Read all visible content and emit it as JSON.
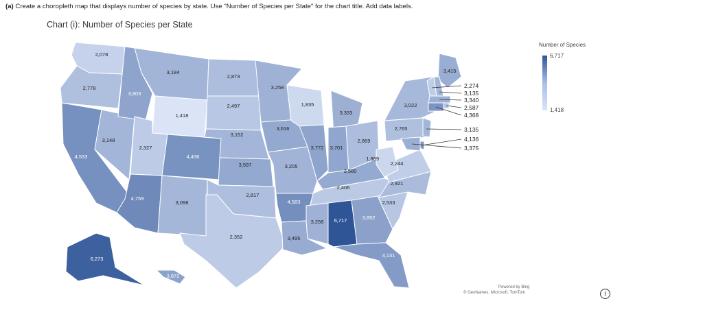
{
  "instruction": {
    "label": "(a)",
    "text": "Create a choropleth map that displays number of species by state. Use \"Number of Species per State\" for the chart title. Add data labels."
  },
  "chart_data": {
    "type": "choropleth",
    "title": "Chart (i): Number of Species per State",
    "legend": {
      "title": "Number of Species",
      "max": "6,717",
      "min": "1,418",
      "placement": "top-right"
    },
    "color_scale": {
      "low": "#dbe4f7",
      "high": "#2f5597"
    },
    "regions": [
      {
        "state": "WA",
        "label": "2,078",
        "value": 2078
      },
      {
        "state": "OR",
        "label": "2,778",
        "value": 2778
      },
      {
        "state": "CA",
        "label": "4,533",
        "value": 4533
      },
      {
        "state": "NV",
        "label": "3,148",
        "value": 3148
      },
      {
        "state": "ID",
        "label": "3,803",
        "value": 3803
      },
      {
        "state": "MT",
        "label": "3,184",
        "value": 3184
      },
      {
        "state": "WY",
        "label": "1,418",
        "value": 1418
      },
      {
        "state": "UT",
        "label": "2,327",
        "value": 2327
      },
      {
        "state": "AZ",
        "label": "4,759",
        "value": 4759
      },
      {
        "state": "CO",
        "label": "4,436",
        "value": 4436
      },
      {
        "state": "NM",
        "label": "3,098",
        "value": 3098
      },
      {
        "state": "ND",
        "label": "2,873",
        "value": 2873
      },
      {
        "state": "SD",
        "label": "2,497",
        "value": 2497
      },
      {
        "state": "NE",
        "label": "3,152",
        "value": 3152
      },
      {
        "state": "KS",
        "label": "3,597",
        "value": 3597
      },
      {
        "state": "OK",
        "label": "2,817",
        "value": 2817
      },
      {
        "state": "TX",
        "label": "2,352",
        "value": 2352
      },
      {
        "state": "MN",
        "label": "3,258",
        "value": 3258
      },
      {
        "state": "IA",
        "label": "3,616",
        "value": 3616
      },
      {
        "state": "MO",
        "label": "3,205",
        "value": 3205
      },
      {
        "state": "AR",
        "label": "4,583",
        "value": 4583
      },
      {
        "state": "LA",
        "label": "3,495",
        "value": 3495
      },
      {
        "state": "WI",
        "label": "1,835",
        "value": 1835
      },
      {
        "state": "IL",
        "label": "3,772",
        "value": 3772
      },
      {
        "state": "MI",
        "label": "3,333",
        "value": 3333
      },
      {
        "state": "IN",
        "label": "3,701",
        "value": 3701
      },
      {
        "state": "OH",
        "label": "2,869",
        "value": 2869
      },
      {
        "state": "KY",
        "label": "3,580",
        "value": 3580
      },
      {
        "state": "TN",
        "label": "2,406",
        "value": 2406
      },
      {
        "state": "MS",
        "label": "3,258",
        "value": 3258
      },
      {
        "state": "AL",
        "label": "6,717",
        "value": 6717
      },
      {
        "state": "GA",
        "label": "3,892",
        "value": 3892
      },
      {
        "state": "FL",
        "label": "4,131",
        "value": 4131
      },
      {
        "state": "SC",
        "label": "2,533",
        "value": 2533
      },
      {
        "state": "NC",
        "label": "2,921",
        "value": 2921
      },
      {
        "state": "VA",
        "label": "2,244",
        "value": 2244
      },
      {
        "state": "WV",
        "label": "1,889",
        "value": 1889
      },
      {
        "state": "PA",
        "label": "2,765",
        "value": 2765
      },
      {
        "state": "NY",
        "label": "3,022",
        "value": 3022
      },
      {
        "state": "ME",
        "label": "3,415",
        "value": 3415
      },
      {
        "state": "AK",
        "label": "6,273",
        "value": 6273
      },
      {
        "state": "HI",
        "label": "3,872",
        "value": 3872
      },
      {
        "state": "VT",
        "label": "2,274",
        "value": 2274
      },
      {
        "state": "NH",
        "label": "3,135",
        "value": 3135
      },
      {
        "state": "MA",
        "label": "3,340",
        "value": 3340
      },
      {
        "state": "RI",
        "label": "2,587",
        "value": 2587
      },
      {
        "state": "CT",
        "label": "4,368",
        "value": 4368
      },
      {
        "state": "NJ",
        "label": "3,135",
        "value": 3135
      },
      {
        "state": "DE",
        "label": "4,136",
        "value": 4136
      },
      {
        "state": "MD",
        "label": "3,375",
        "value": 3375
      }
    ]
  },
  "attribution": {
    "line1": "Powered by Bing",
    "line2": "© GeoNames, Microsoft, TomTom"
  },
  "info_icon": "i"
}
